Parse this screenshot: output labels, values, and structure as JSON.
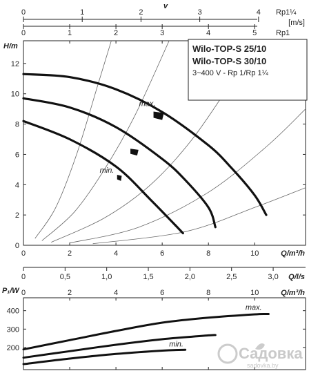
{
  "header": {
    "velocity_symbol": "v",
    "rp_unit_top": "Rp1¼",
    "rp_unit_bottom": "Rp1",
    "velocity_unit": "[m/s]",
    "scale_rp114": {
      "ticks": [
        0,
        1,
        2,
        3,
        4
      ],
      "labels": [
        "0",
        "1",
        "2",
        "3",
        "4"
      ],
      "range": [
        0,
        4.8
      ]
    },
    "scale_rp1": {
      "ticks": [
        0,
        1,
        2,
        3,
        4,
        5
      ],
      "labels": [
        "0",
        "1",
        "2",
        "3",
        "4",
        "5"
      ],
      "range": [
        0,
        6.1
      ]
    }
  },
  "info_box": {
    "line1": "Wilo-TOP-S 25/10",
    "line2": "Wilo-TOP-S 30/10",
    "line3": "3~400 V - Rp 1/Rp 1¼"
  },
  "watermark": {
    "text": "Садовка",
    "sub": "sadovka.by"
  },
  "chart_data": [
    {
      "type": "line",
      "ylabel": "H/m",
      "xlabel": "Q/m³/h",
      "xlim": [
        0,
        12.2
      ],
      "ylim": [
        0,
        13.5
      ],
      "xticks": [
        0,
        2,
        4,
        6,
        8,
        10
      ],
      "yticks": [
        0,
        2,
        4,
        6,
        8,
        10,
        12
      ],
      "xtick_labels": [
        "0",
        "2",
        "4",
        "6",
        "8",
        "10"
      ],
      "ytick_labels": [
        "0",
        "2",
        "4",
        "6",
        "8",
        "10",
        "12"
      ],
      "upper_xlabel": "Q/l/s",
      "upper_xticks": [
        0,
        0.5,
        1.0,
        1.5,
        2.0,
        2.5,
        3.0
      ],
      "upper_xtick_labels": [
        "0",
        "0,5",
        "1,0",
        "1,5",
        "2,0",
        "2,5",
        "3,0"
      ],
      "series": [
        {
          "points": [
            [
              0,
              11.3
            ],
            [
              2,
              11.1
            ],
            [
              4,
              10.3
            ],
            [
              6,
              8.8
            ],
            [
              8,
              6.6
            ],
            [
              9,
              5.1
            ],
            [
              10,
              3.3
            ],
            [
              10.5,
              2.0
            ]
          ]
        },
        {
          "points": [
            [
              0,
              9.7
            ],
            [
              2,
              9.1
            ],
            [
              4,
              7.8
            ],
            [
              6,
              5.7
            ],
            [
              7,
              4.3
            ],
            [
              8,
              2.5
            ],
            [
              8.3,
              1.2
            ]
          ]
        },
        {
          "points": [
            [
              0,
              8.2
            ],
            [
              2,
              7.0
            ],
            [
              4,
              5.2
            ],
            [
              5.5,
              3.0
            ],
            [
              6.9,
              0.8
            ]
          ]
        }
      ],
      "efficiency_curves": [
        {
          "points": [
            [
              0.5,
              0.45
            ],
            [
              1.4,
              2.5
            ],
            [
              2.3,
              6.0
            ],
            [
              3.2,
              10.5
            ],
            [
              3.8,
              13.5
            ]
          ]
        },
        {
          "points": [
            [
              0.8,
              0.3
            ],
            [
              2.2,
              2.2
            ],
            [
              3.5,
              5.0
            ],
            [
              4.8,
              8.5
            ],
            [
              6.3,
              13.5
            ]
          ]
        },
        {
          "points": [
            [
              1.2,
              0.2
            ],
            [
              3.5,
              1.8
            ],
            [
              5.5,
              4.0
            ],
            [
              7.3,
              7.0
            ],
            [
              9.1,
              11.0
            ],
            [
              10.2,
              13.5
            ]
          ]
        },
        {
          "points": [
            [
              2.0,
              0.15
            ],
            [
              5.0,
              1.2
            ],
            [
              8.0,
              3.5
            ],
            [
              10.5,
              6.5
            ],
            [
              12.2,
              9.0
            ]
          ]
        },
        {
          "points": [
            [
              3.0,
              0.1
            ],
            [
              7.0,
              0.9
            ],
            [
              10.0,
              2.5
            ],
            [
              12.2,
              3.8
            ]
          ]
        }
      ],
      "annotations": [
        {
          "text": "max.",
          "x": 5.0,
          "y": 9.2
        },
        {
          "text": "min.",
          "x": 3.3,
          "y": 4.8
        }
      ],
      "markers": [
        {
          "x": 5.85,
          "y": 8.55,
          "w": 0.45,
          "h": 0.55
        },
        {
          "x": 4.8,
          "y": 6.15,
          "w": 0.35,
          "h": 0.45
        },
        {
          "x": 4.15,
          "y": 4.45,
          "w": 0.2,
          "h": 0.4
        }
      ]
    },
    {
      "type": "line",
      "ylabel": "P₁/W",
      "xlabel": "Q/m³/h",
      "xlim": [
        0,
        12.2
      ],
      "ylim": [
        80,
        470
      ],
      "xticks": [
        0,
        2,
        4,
        6,
        8,
        10
      ],
      "yticks": [
        200,
        300,
        400
      ],
      "xtick_labels": [
        "0",
        "2",
        "4",
        "6",
        "8",
        "10"
      ],
      "ytick_labels": [
        "200",
        "300",
        "400"
      ],
      "series": [
        {
          "points": [
            [
              0,
              190
            ],
            [
              2,
              240
            ],
            [
              4,
              290
            ],
            [
              6,
              335
            ],
            [
              8,
              362
            ],
            [
              10,
              380
            ],
            [
              10.6,
              382
            ]
          ]
        },
        {
          "points": [
            [
              0,
              145
            ],
            [
              2,
              180
            ],
            [
              4,
              215
            ],
            [
              6,
              245
            ],
            [
              8,
              266
            ],
            [
              8.3,
              268
            ]
          ]
        },
        {
          "points": [
            [
              0,
              110
            ],
            [
              2,
              140
            ],
            [
              4,
              165
            ],
            [
              6,
              183
            ],
            [
              7.0,
              188
            ]
          ]
        }
      ],
      "annotations": [
        {
          "text": "max.",
          "x": 9.6,
          "y": 405
        },
        {
          "text": "min.",
          "x": 6.3,
          "y": 205
        }
      ]
    }
  ]
}
